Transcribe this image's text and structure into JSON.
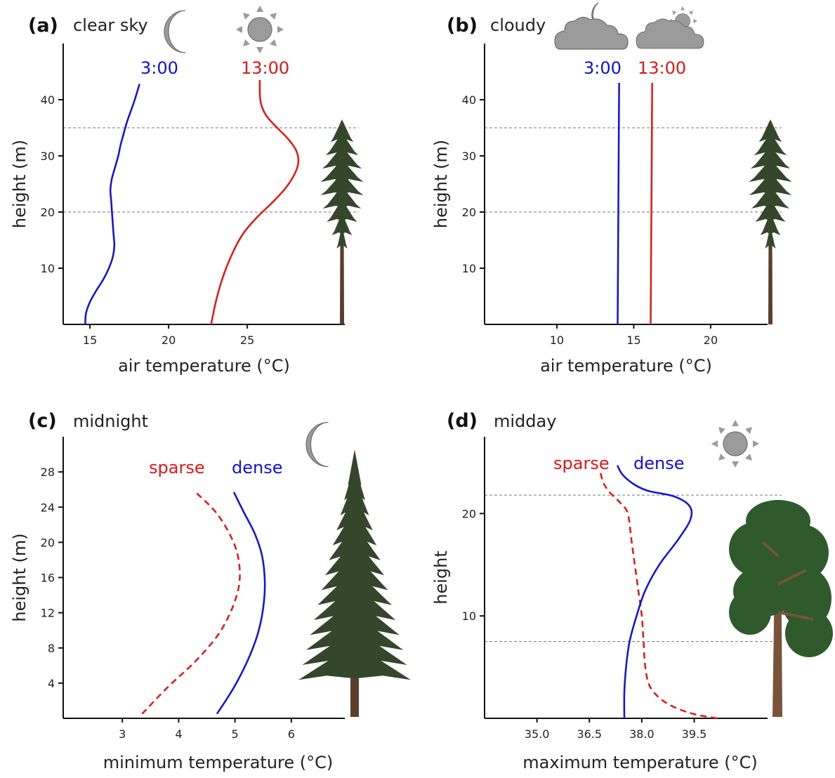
{
  "colors": {
    "blue": "#1010e0",
    "red": "#e51616",
    "axis": "#111111",
    "icon": "#9b9b9b",
    "conifer": "#34472a",
    "trunk": "#5a3e2b",
    "pine_crown": "#2f5a2c"
  },
  "chart_data": [
    {
      "id": "a",
      "type": "line",
      "letter": "(a)",
      "title": "clear sky",
      "xlabel": "air temperature (°C)",
      "ylabel": "height (m)",
      "xlim": [
        13.3,
        31.2
      ],
      "ylim": [
        0,
        50
      ],
      "xticks": [
        15,
        20,
        25
      ],
      "yticks": [
        10,
        20,
        30,
        40
      ],
      "reference_lines_y": [
        20,
        35
      ],
      "icons": [
        "moon-icon",
        "sun-icon"
      ],
      "tree": "conifer-tree",
      "series": [
        {
          "name": "3:00",
          "color": "#1010e0",
          "dash": false,
          "points": [
            [
              14.7,
              0
            ],
            [
              14.75,
              2
            ],
            [
              15.0,
              4
            ],
            [
              15.4,
              6
            ],
            [
              15.85,
              8
            ],
            [
              16.2,
              10
            ],
            [
              16.45,
              12
            ],
            [
              16.55,
              14
            ],
            [
              16.5,
              16
            ],
            [
              16.45,
              18
            ],
            [
              16.4,
              20
            ],
            [
              16.35,
              22
            ],
            [
              16.3,
              24
            ],
            [
              16.4,
              26
            ],
            [
              16.6,
              28
            ],
            [
              16.8,
              30
            ],
            [
              16.95,
              32
            ],
            [
              17.15,
              34
            ],
            [
              17.35,
              36
            ],
            [
              17.6,
              38
            ],
            [
              17.85,
              40
            ],
            [
              18.15,
              42.8
            ]
          ]
        },
        {
          "name": "13:00",
          "color": "#e51616",
          "dash": false,
          "points": [
            [
              22.7,
              0
            ],
            [
              23.0,
              4
            ],
            [
              23.4,
              8
            ],
            [
              23.95,
              12
            ],
            [
              24.7,
              16
            ],
            [
              25.6,
              19
            ],
            [
              26.7,
              22
            ],
            [
              27.5,
              24.5
            ],
            [
              28.05,
              27
            ],
            [
              28.25,
              29
            ],
            [
              28.1,
              31
            ],
            [
              27.6,
              33
            ],
            [
              26.9,
              35
            ],
            [
              26.25,
              37
            ],
            [
              25.9,
              39
            ],
            [
              25.8,
              41
            ],
            [
              25.8,
              43.5
            ]
          ]
        }
      ]
    },
    {
      "id": "b",
      "type": "line",
      "letter": "(b)",
      "title": "cloudy",
      "xlabel": "air temperature (°C)",
      "ylabel": "height (m)",
      "xlim": [
        5.3,
        23.7
      ],
      "ylim": [
        0,
        50
      ],
      "xticks": [
        10,
        15,
        20
      ],
      "yticks": [
        10,
        20,
        30,
        40
      ],
      "reference_lines_y": [
        20,
        35
      ],
      "icons": [
        "cloud-moon-icon",
        "cloud-sun-icon"
      ],
      "tree": "conifer-tree",
      "series": [
        {
          "name": "3:00",
          "color": "#1010e0",
          "dash": false,
          "points": [
            [
              13.95,
              0
            ],
            [
              14.05,
              43
            ]
          ]
        },
        {
          "name": "13:00",
          "color": "#e51616",
          "dash": false,
          "points": [
            [
              16.1,
              0
            ],
            [
              16.2,
              43
            ]
          ]
        }
      ]
    },
    {
      "id": "c",
      "type": "line",
      "letter": "(c)",
      "title": "midnight",
      "xlabel": "minimum temperature (°C)",
      "ylabel": "height (m)",
      "xlim": [
        1.95,
        6.95
      ],
      "ylim": [
        0,
        32
      ],
      "xticks": [
        3,
        4,
        5,
        6
      ],
      "yticks": [
        4,
        8,
        12,
        16,
        20,
        24,
        28
      ],
      "reference_lines_y": [],
      "icons": [
        "moon-icon"
      ],
      "tree": "spruce-tree",
      "series": [
        {
          "name": "sparse",
          "color": "#e51616",
          "dash": true,
          "points": [
            [
              3.35,
              0.5
            ],
            [
              3.8,
              3.5
            ],
            [
              4.3,
              6.5
            ],
            [
              4.7,
              9.5
            ],
            [
              4.95,
              12.5
            ],
            [
              5.08,
              15.5
            ],
            [
              5.05,
              18.5
            ],
            [
              4.9,
              21
            ],
            [
              4.65,
              23.5
            ],
            [
              4.3,
              25.7
            ]
          ]
        },
        {
          "name": "dense",
          "color": "#1010e0",
          "dash": true,
          "points": [
            [
              4.68,
              0.5
            ],
            [
              4.98,
              3.5
            ],
            [
              5.22,
              6.5
            ],
            [
              5.4,
              9.5
            ],
            [
              5.5,
              12.5
            ],
            [
              5.53,
              15.5
            ],
            [
              5.48,
              18.5
            ],
            [
              5.35,
              21
            ],
            [
              5.15,
              23.5
            ],
            [
              4.98,
              25.7
            ]
          ]
        }
      ]
    },
    {
      "id": "d",
      "type": "line",
      "letter": "(d)",
      "title": "midday",
      "xlabel": "maximum temperature (°C)",
      "ylabel": "height",
      "xlim": [
        33.5,
        41.6
      ],
      "ylim": [
        0,
        27.5
      ],
      "xticks": [
        35.0,
        36.5,
        38.0,
        39.5
      ],
      "yticks": [
        10,
        20
      ],
      "reference_lines_y": [
        7.5,
        21.8
      ],
      "icons": [
        "sun-icon"
      ],
      "tree": "pine-tree",
      "series": [
        {
          "name": "sparse",
          "color": "#e51616",
          "dash": true,
          "points": [
            [
              40.15,
              0
            ],
            [
              39.4,
              0.5
            ],
            [
              38.7,
              1.5
            ],
            [
              38.25,
              3
            ],
            [
              38.1,
              5
            ],
            [
              38.05,
              7.5
            ],
            [
              38.0,
              10
            ],
            [
              37.9,
              12.5
            ],
            [
              37.8,
              15
            ],
            [
              37.7,
              17.5
            ],
            [
              37.6,
              20
            ],
            [
              37.4,
              21
            ],
            [
              37.1,
              22
            ],
            [
              36.9,
              23
            ],
            [
              36.8,
              24.3
            ]
          ]
        },
        {
          "name": "dense",
          "color": "#1010e0",
          "dash": true,
          "points": [
            [
              37.5,
              0
            ],
            [
              37.5,
              2.5
            ],
            [
              37.55,
              5
            ],
            [
              37.65,
              7.5
            ],
            [
              37.85,
              10
            ],
            [
              38.1,
              12.5
            ],
            [
              38.5,
              15
            ],
            [
              39.05,
              17.5
            ],
            [
              39.4,
              19.5
            ],
            [
              39.35,
              20.8
            ],
            [
              38.9,
              21.7
            ],
            [
              38.2,
              22.2
            ],
            [
              37.8,
              22.8
            ],
            [
              37.45,
              23.8
            ],
            [
              37.3,
              24.7
            ]
          ]
        }
      ]
    }
  ]
}
